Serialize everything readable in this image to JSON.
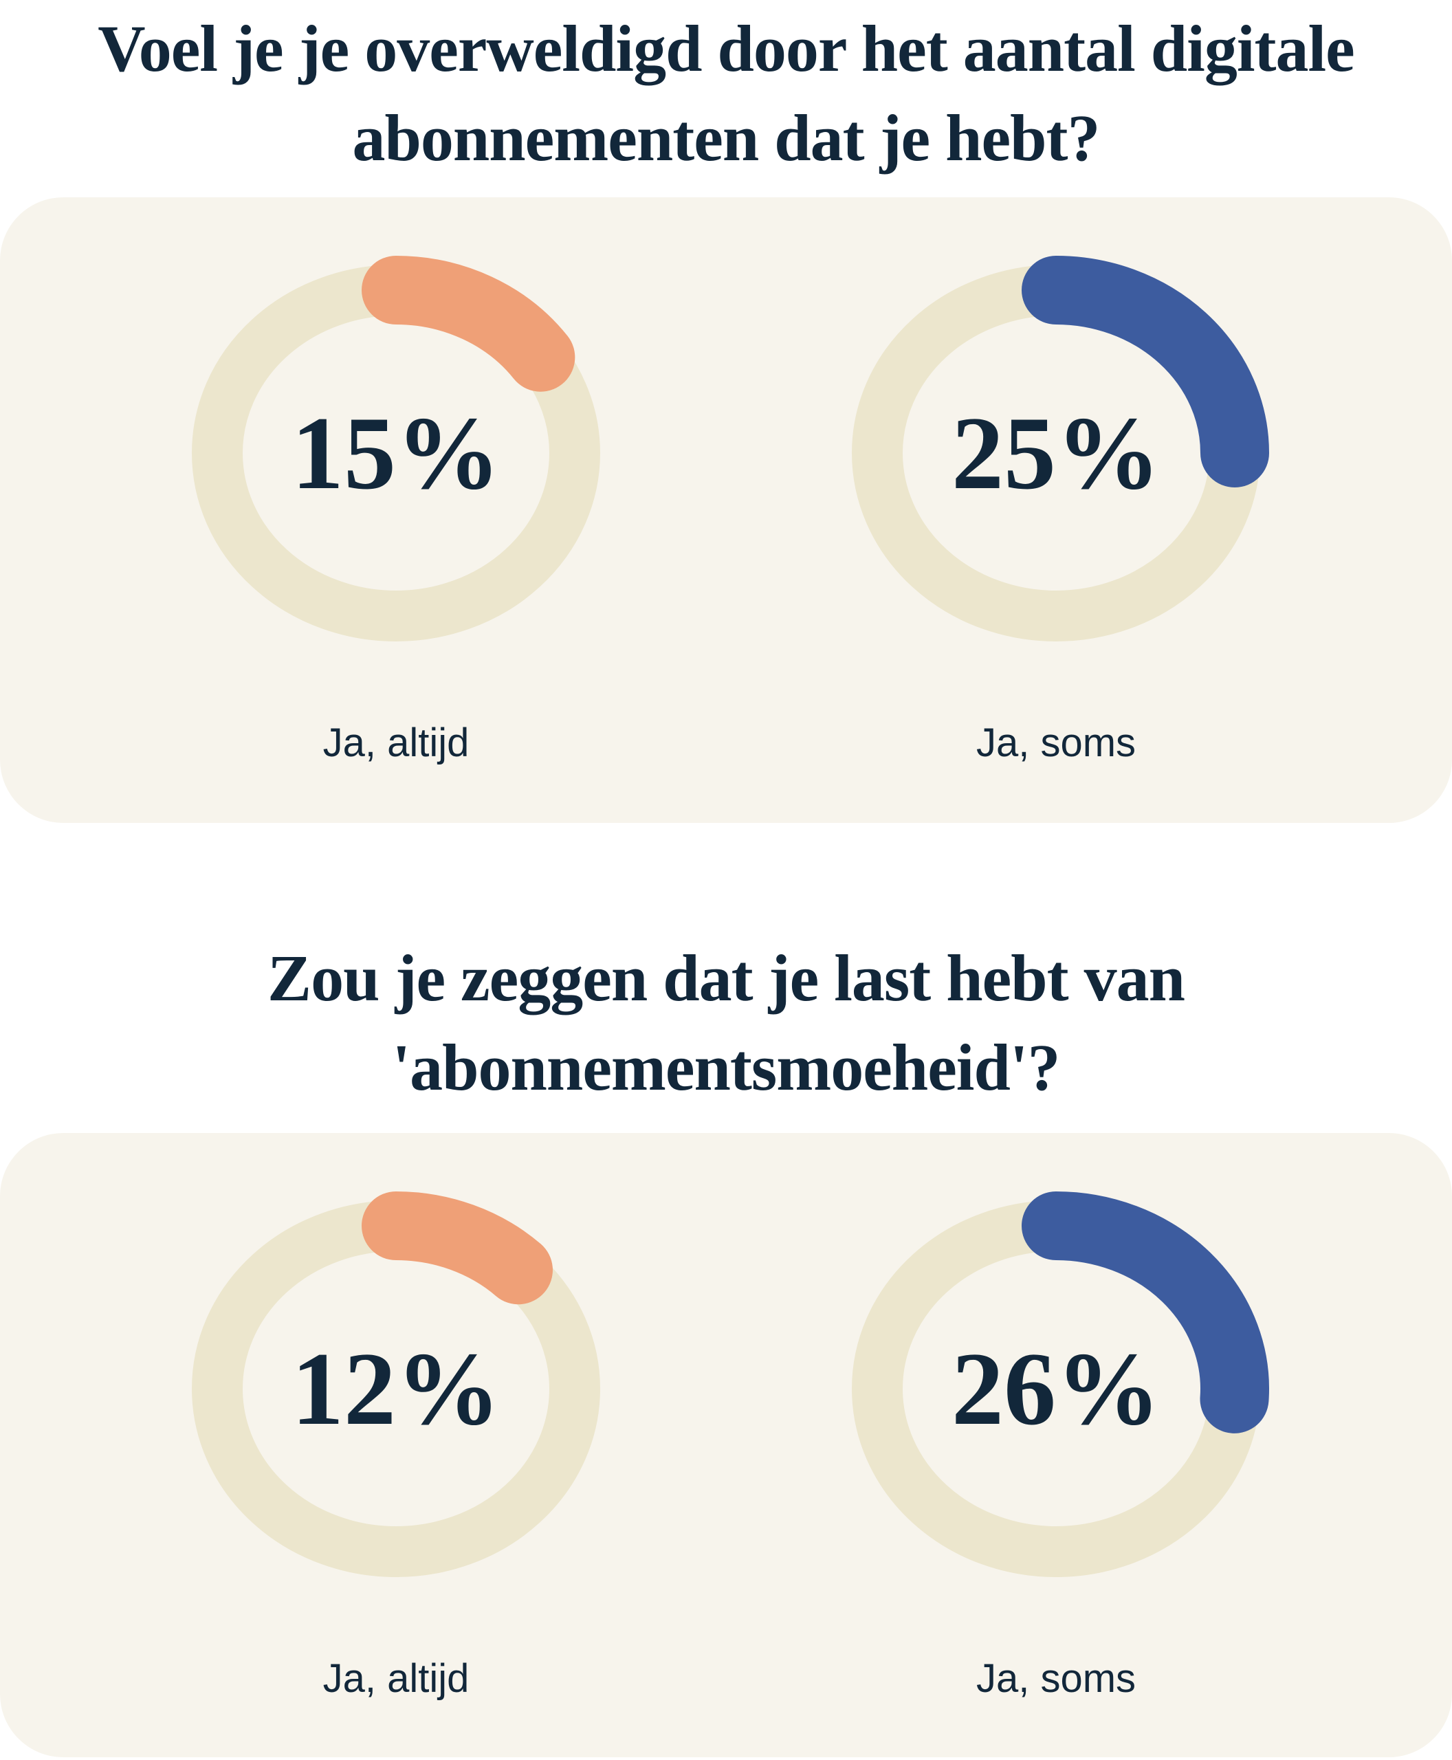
{
  "page": {
    "background": "#ffffff",
    "card_background": "#f7f4ec",
    "text_color": "#12273a"
  },
  "chart_data": [
    {
      "type": "donut",
      "question": "Voel je je overweldigd door het aantal digitale abonnementen dat je hebt?",
      "lines": [
        "Voel je je overweldigd door het aantal digitale",
        "abonnementen dat je hebt?"
      ],
      "track_color": "#ece6cd",
      "items": [
        {
          "label": "Ja, altijd",
          "value": 15,
          "display": "15%",
          "color": "#efa077"
        },
        {
          "label": "Ja, soms",
          "value": 25,
          "display": "25%",
          "color": "#3d5c9f"
        }
      ]
    },
    {
      "type": "donut",
      "question": "Zou je zeggen dat je last hebt van 'abonnementsmoeheid'?",
      "lines": [
        "Zou je zeggen dat je last hebt van",
        "'abonnementsmoeheid'?"
      ],
      "track_color": "#ece6cd",
      "items": [
        {
          "label": "Ja, altijd",
          "value": 12,
          "display": "12%",
          "color": "#efa077"
        },
        {
          "label": "Ja, soms",
          "value": 26,
          "display": "26%",
          "color": "#3d5c9f"
        }
      ]
    }
  ]
}
